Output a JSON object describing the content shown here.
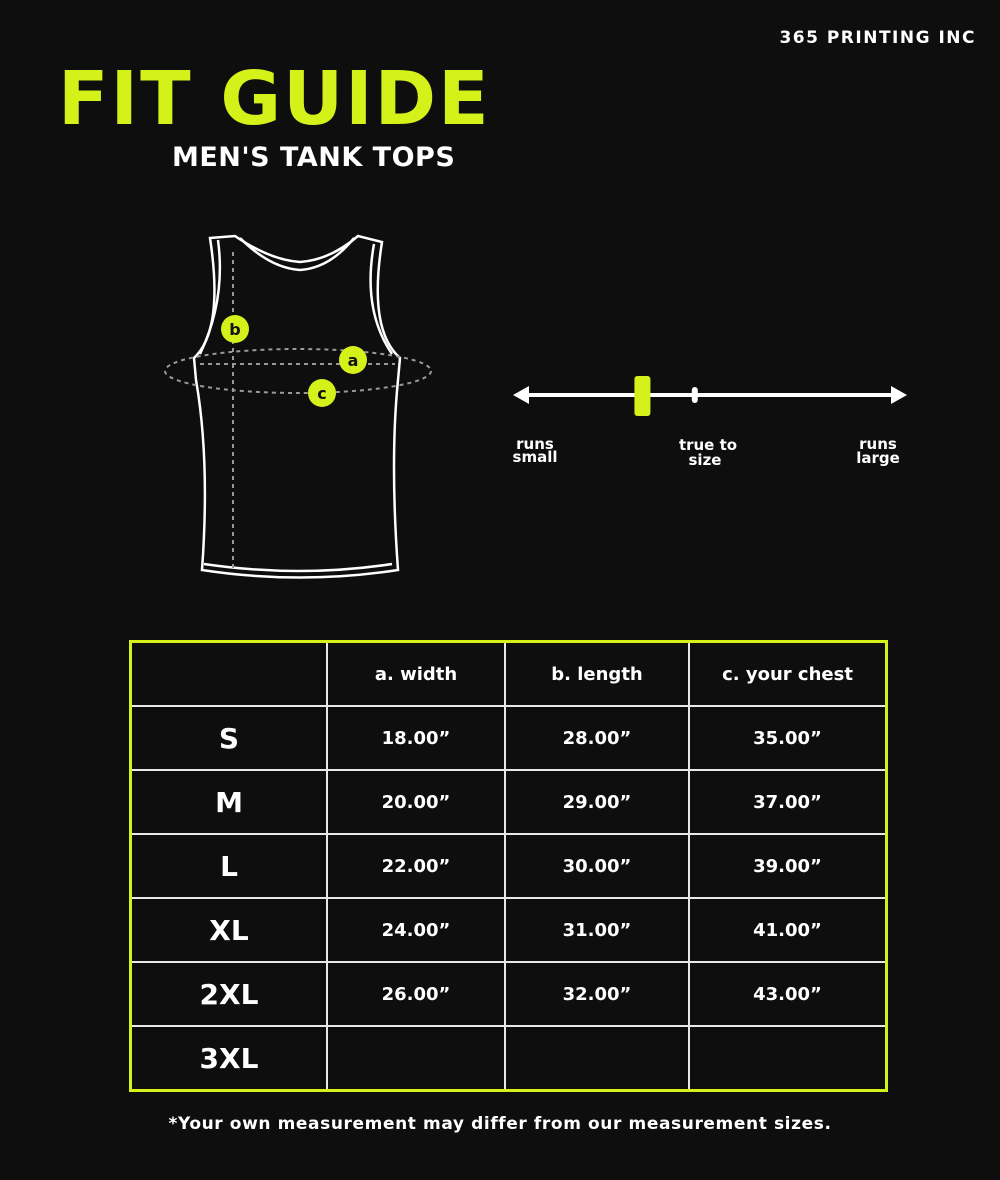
{
  "brand": "365 PRINTING INC",
  "title": "FIT GUIDE",
  "subtitle": "MEN'S TANK TOPS",
  "diagram": {
    "markers": [
      "a",
      "b",
      "c"
    ]
  },
  "fit_scale": {
    "left_label": [
      "runs",
      "small"
    ],
    "middle_label": [
      "true to",
      "size"
    ],
    "right_label": [
      "runs",
      "large"
    ],
    "fit_level": 0.33,
    "true_to_size_level": 0.47
  },
  "colors": {
    "accent": "#d4f21a",
    "background": "#0e0e0e",
    "text": "#ffffff"
  },
  "table": {
    "headers": [
      "",
      "a. width",
      "b. length",
      "c. your chest"
    ],
    "rows": [
      {
        "size": "S",
        "width": "18.00”",
        "length": "28.00”",
        "chest": "35.00”"
      },
      {
        "size": "M",
        "width": "20.00”",
        "length": "29.00”",
        "chest": "37.00”"
      },
      {
        "size": "L",
        "width": "22.00”",
        "length": "30.00”",
        "chest": "39.00”"
      },
      {
        "size": "XL",
        "width": "24.00”",
        "length": "31.00”",
        "chest": "41.00”"
      },
      {
        "size": "2XL",
        "width": "26.00”",
        "length": "32.00”",
        "chest": "43.00”"
      },
      {
        "size": "3XL",
        "width": "",
        "length": "",
        "chest": ""
      }
    ]
  },
  "footnote": "*Your own measurement may differ from our measurement sizes."
}
